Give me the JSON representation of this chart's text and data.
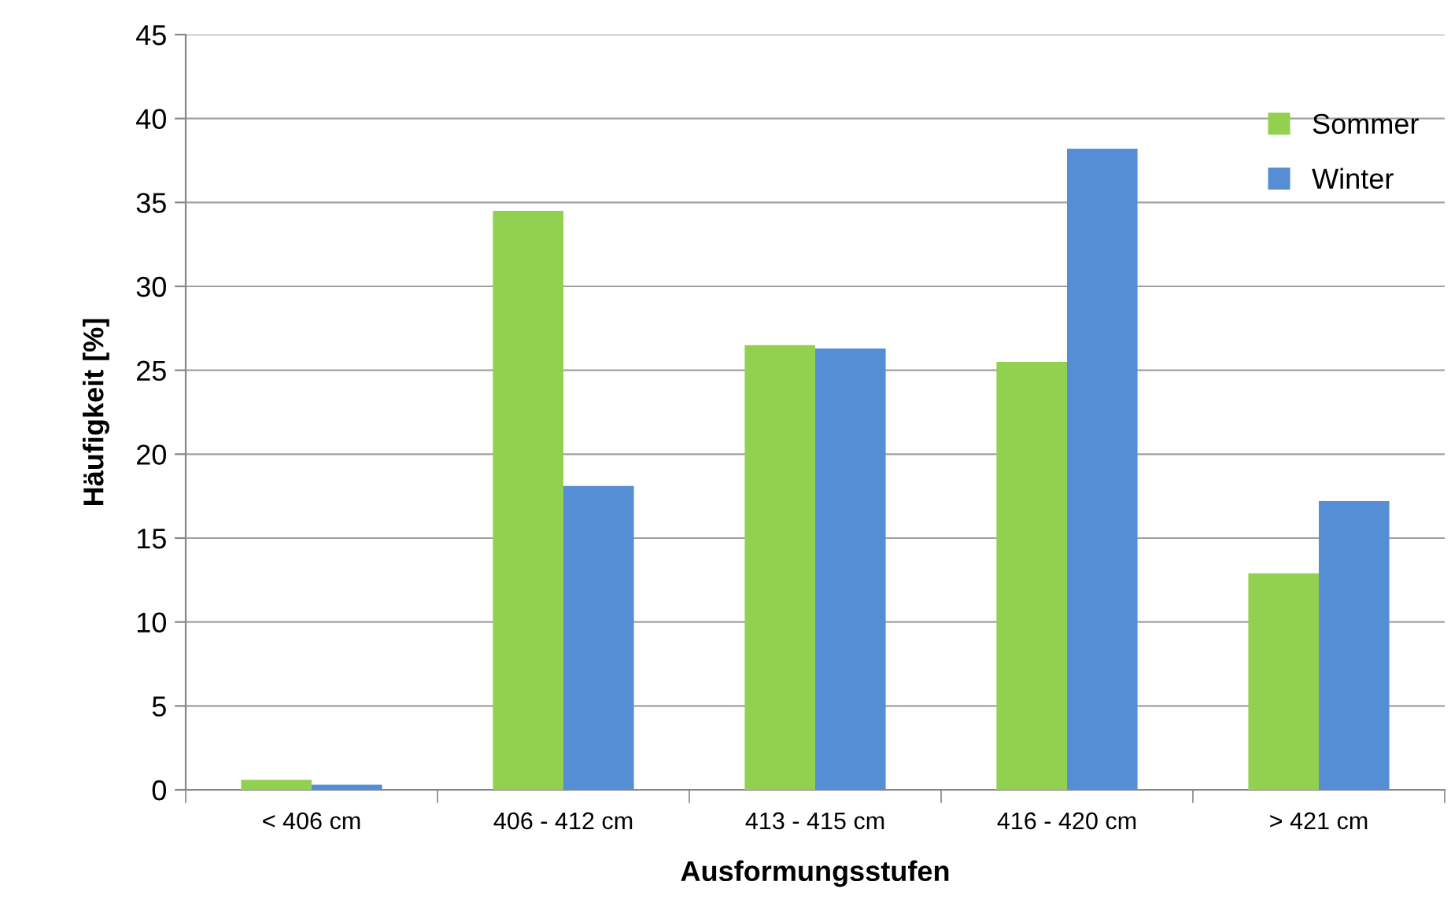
{
  "chart_data": {
    "type": "bar",
    "xlabel": "Ausformungsstufen",
    "ylabel": "Häufigkeit [%]",
    "categories": [
      "< 406 cm",
      "406 - 412 cm",
      "413 - 415 cm",
      "416 - 420 cm",
      "> 421 cm"
    ],
    "series": [
      {
        "name": "Sommer",
        "color": "#92d050",
        "values": [
          0.6,
          34.5,
          26.5,
          25.5,
          12.9
        ]
      },
      {
        "name": "Winter",
        "color": "#558ed5",
        "values": [
          0.3,
          18.1,
          26.3,
          38.2,
          17.2
        ]
      }
    ],
    "ylim": [
      0,
      45
    ],
    "yticks": [
      0,
      5,
      10,
      15,
      20,
      25,
      30,
      35,
      40,
      45
    ],
    "grid": "y",
    "legend": "top right"
  }
}
